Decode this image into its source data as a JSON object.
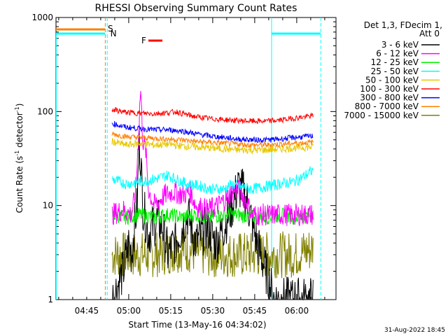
{
  "chart_data": {
    "type": "line",
    "title": "RHESSI Observing Summary Count Rates",
    "xlabel": "Start Time (13-May-16 04:34:02)",
    "ylabel_main": "Count Rate (s",
    "ylabel_sup1": "-1",
    "ylabel_mid": " detector",
    "ylabel_sup2": "-1",
    "ylabel_end": ")",
    "yscale": "log",
    "ylim": [
      1,
      1000
    ],
    "xlim_minutes": [
      0,
      100
    ],
    "x_ticks": [
      {
        "label": "04:45",
        "min": 10.97
      },
      {
        "label": "05:00",
        "min": 25.97
      },
      {
        "label": "05:15",
        "min": 40.97
      },
      {
        "label": "05:30",
        "min": 55.97
      },
      {
        "label": "05:45",
        "min": 70.97
      },
      {
        "label": "06:00",
        "min": 85.97
      }
    ],
    "y_ticks": [
      {
        "label": "1",
        "value": 1
      },
      {
        "label": "10",
        "value": 10
      },
      {
        "label": "100",
        "value": 100
      },
      {
        "label": "1000",
        "value": 1000
      }
    ],
    "legend_header": [
      "Det 1,3, FDecim 1,",
      "Att 0"
    ],
    "series": [
      {
        "name": "3 - 6 keV",
        "color": "#000000",
        "points": [
          [
            20,
            1
          ],
          [
            24,
            2
          ],
          [
            26,
            4
          ],
          [
            27,
            3
          ],
          [
            28,
            6
          ],
          [
            29,
            10
          ],
          [
            29.7,
            45
          ],
          [
            30.3,
            30
          ],
          [
            31,
            10
          ],
          [
            33,
            5
          ],
          [
            36,
            7
          ],
          [
            38,
            6
          ],
          [
            40,
            3
          ],
          [
            44,
            5
          ],
          [
            47,
            8
          ],
          [
            50,
            4
          ],
          [
            54,
            6
          ],
          [
            57,
            4
          ],
          [
            60,
            6
          ],
          [
            63,
            10
          ],
          [
            65,
            16
          ],
          [
            67,
            14
          ],
          [
            69,
            9
          ],
          [
            71,
            5
          ],
          [
            73,
            3
          ],
          [
            75,
            2
          ],
          [
            78,
            1
          ],
          [
            85,
            1
          ],
          [
            92,
            1
          ]
        ]
      },
      {
        "name": "6 - 12 keV",
        "color": "#ff00ff",
        "points": [
          [
            20,
            8
          ],
          [
            24,
            9
          ],
          [
            27,
            8
          ],
          [
            28.5,
            14
          ],
          [
            29.5,
            60
          ],
          [
            30.2,
            180
          ],
          [
            31,
            50
          ],
          [
            32,
            40
          ],
          [
            33,
            15
          ],
          [
            35,
            10
          ],
          [
            39,
            13
          ],
          [
            42,
            14
          ],
          [
            45,
            13
          ],
          [
            48,
            14
          ],
          [
            50,
            10
          ],
          [
            54,
            9
          ],
          [
            58,
            10
          ],
          [
            62,
            13
          ],
          [
            64,
            15
          ],
          [
            66,
            14
          ],
          [
            68,
            11
          ],
          [
            70,
            8
          ],
          [
            73,
            8
          ],
          [
            78,
            8
          ],
          [
            84,
            8
          ],
          [
            88,
            8
          ],
          [
            92,
            8
          ]
        ]
      },
      {
        "name": "12 - 25 keV",
        "color": "#00ee00",
        "points": [
          [
            20,
            8
          ],
          [
            25,
            7.5
          ],
          [
            30,
            8
          ],
          [
            35,
            7.5
          ],
          [
            40,
            8
          ],
          [
            45,
            7.5
          ],
          [
            50,
            8
          ],
          [
            55,
            7.5
          ],
          [
            60,
            8
          ],
          [
            65,
            8
          ],
          [
            70,
            7.5
          ],
          [
            75,
            7.5
          ],
          [
            80,
            8
          ],
          [
            85,
            7.5
          ],
          [
            92,
            8
          ]
        ]
      },
      {
        "name": "25 - 50 keV",
        "color": "#00ffff",
        "points": [
          [
            20,
            19
          ],
          [
            25,
            17
          ],
          [
            30,
            18
          ],
          [
            35,
            19
          ],
          [
            40,
            21
          ],
          [
            43,
            19
          ],
          [
            47,
            17
          ],
          [
            52,
            16
          ],
          [
            55,
            15
          ],
          [
            60,
            15
          ],
          [
            63,
            17
          ],
          [
            65,
            16
          ],
          [
            70,
            15
          ],
          [
            75,
            16
          ],
          [
            80,
            17
          ],
          [
            85,
            18
          ],
          [
            88,
            20
          ],
          [
            92,
            24
          ]
        ]
      },
      {
        "name": "50 - 100 keV",
        "color": "#e8c800",
        "points": [
          [
            20,
            48
          ],
          [
            25,
            44
          ],
          [
            30,
            46
          ],
          [
            35,
            44
          ],
          [
            40,
            45
          ],
          [
            45,
            43
          ],
          [
            50,
            42
          ],
          [
            55,
            41
          ],
          [
            60,
            40
          ],
          [
            65,
            39
          ],
          [
            70,
            39
          ],
          [
            75,
            39
          ],
          [
            80,
            40
          ],
          [
            85,
            41
          ],
          [
            92,
            42
          ]
        ]
      },
      {
        "name": "100 - 300 keV",
        "color": "#ff0000",
        "points": [
          [
            20,
            105
          ],
          [
            25,
            98
          ],
          [
            30,
            96
          ],
          [
            35,
            95
          ],
          [
            40,
            97
          ],
          [
            43,
            100
          ],
          [
            45,
            95
          ],
          [
            50,
            88
          ],
          [
            55,
            84
          ],
          [
            60,
            82
          ],
          [
            65,
            80
          ],
          [
            70,
            79
          ],
          [
            75,
            79
          ],
          [
            80,
            81
          ],
          [
            85,
            85
          ],
          [
            92,
            90
          ]
        ]
      },
      {
        "name": "300 - 800 keV",
        "color": "#0000ff",
        "points": [
          [
            20,
            75
          ],
          [
            25,
            68
          ],
          [
            30,
            66
          ],
          [
            35,
            64
          ],
          [
            40,
            64
          ],
          [
            45,
            62
          ],
          [
            50,
            58
          ],
          [
            55,
            55
          ],
          [
            60,
            53
          ],
          [
            65,
            51
          ],
          [
            70,
            50
          ],
          [
            75,
            50
          ],
          [
            80,
            51
          ],
          [
            85,
            53
          ],
          [
            92,
            55
          ]
        ]
      },
      {
        "name": "800 - 7000 keV",
        "color": "#ff8000",
        "points": [
          [
            20,
            58
          ],
          [
            25,
            54
          ],
          [
            30,
            53
          ],
          [
            35,
            52
          ],
          [
            40,
            51
          ],
          [
            45,
            50
          ],
          [
            50,
            48
          ],
          [
            55,
            47
          ],
          [
            60,
            46
          ],
          [
            65,
            45
          ],
          [
            70,
            44
          ],
          [
            75,
            44
          ],
          [
            80,
            45
          ],
          [
            85,
            46
          ],
          [
            92,
            47
          ]
        ]
      },
      {
        "name": "7000 - 15000 keV",
        "color": "#808000",
        "points": [
          [
            20,
            3
          ],
          [
            30,
            3
          ],
          [
            35,
            3
          ],
          [
            45,
            3.5
          ],
          [
            55,
            3
          ],
          [
            65,
            3
          ],
          [
            75,
            3
          ],
          [
            85,
            3
          ],
          [
            92,
            3.5
          ]
        ]
      }
    ],
    "flags": [
      {
        "label": "S",
        "color": "#ff8000"
      },
      {
        "label": "N",
        "color": "#00ffff"
      },
      {
        "label": "F",
        "color": "#ff0000"
      }
    ]
  },
  "footer_date": "31-Aug-2022 18:45"
}
